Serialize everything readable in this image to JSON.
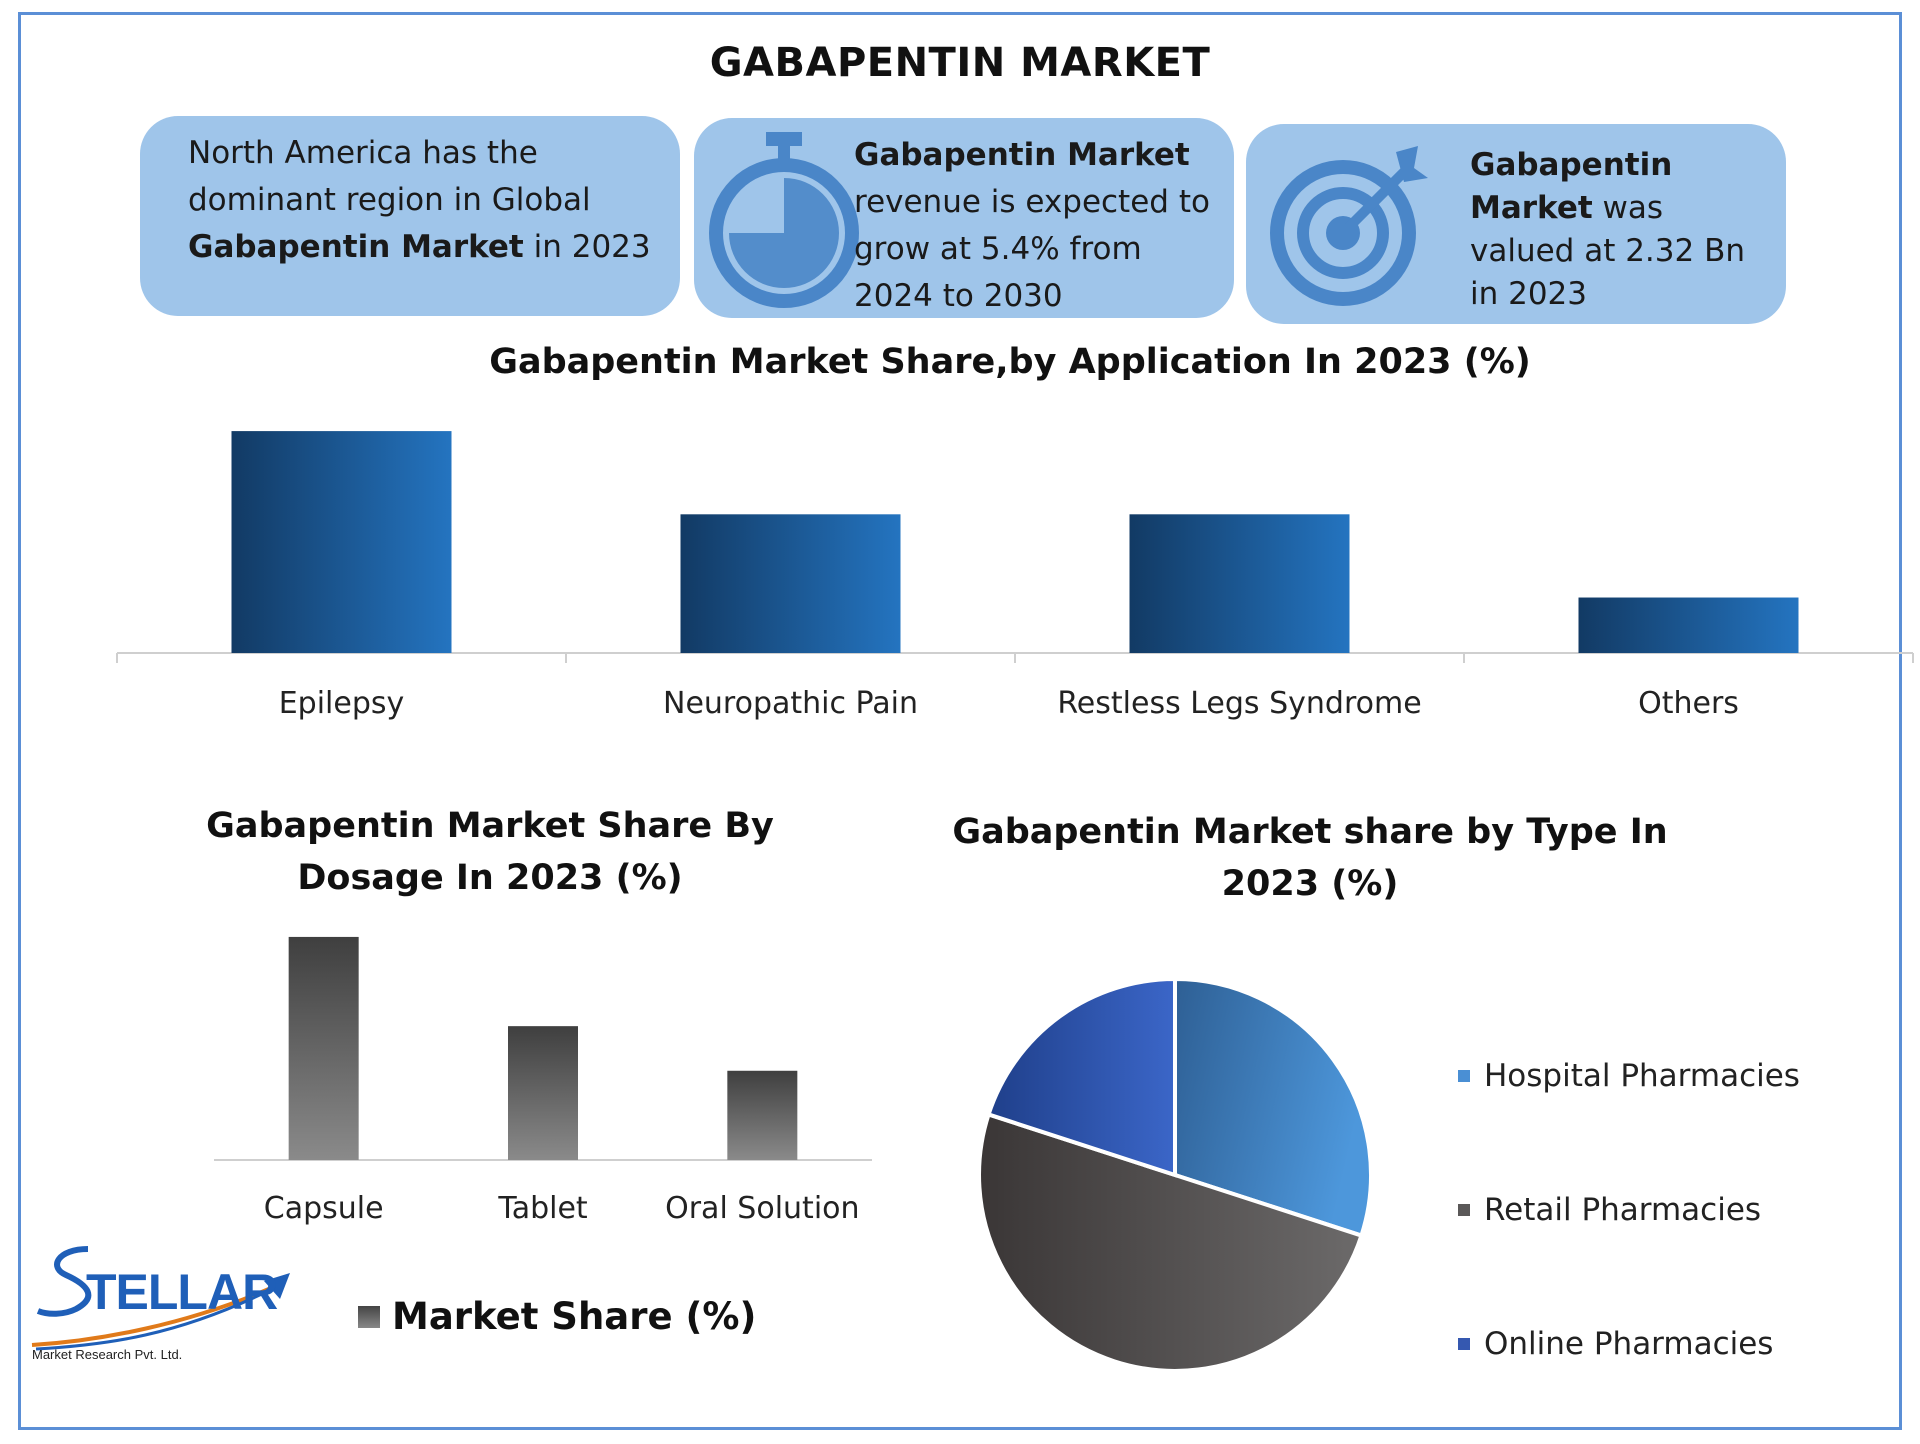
{
  "title": "GABAPENTIN MARKET",
  "cards": [
    {
      "lines": [
        [
          {
            "t": "North America has the",
            "b": false
          }
        ],
        [
          {
            "t": "dominant region in Global",
            "b": false
          }
        ],
        [
          {
            "t": "Gabapentin Market",
            "b": true
          },
          {
            "t": " in 2023",
            "b": false
          }
        ]
      ],
      "icon": "none"
    },
    {
      "lines": [
        [
          {
            "t": "Gabapentin Market",
            "b": true
          }
        ],
        [
          {
            "t": "revenue is expected to",
            "b": false
          }
        ],
        [
          {
            "t": "grow at 5.4% from",
            "b": false
          }
        ],
        [
          {
            "t": "2024 to 2030",
            "b": false
          }
        ]
      ],
      "icon": "stopwatch-icon"
    },
    {
      "lines": [
        [
          {
            "t": "Gabapentin",
            "b": true
          }
        ],
        [
          {
            "t": "Market",
            "b": true
          },
          {
            "t": " was",
            "b": false
          }
        ],
        [
          {
            "t": "valued at 2.32 Bn",
            "b": false
          }
        ],
        [
          {
            "t": "in 2023",
            "b": false
          }
        ]
      ],
      "icon": "target-icon"
    }
  ],
  "colors": {
    "card_bg": "#9fc5ea",
    "icon": "#4a86c8",
    "frame": "#5b8fd6",
    "bar_blue_start": "#123a64",
    "bar_blue_end": "#2474c0",
    "bar_gray_top": "#3f3f3f",
    "bar_gray_bottom": "#8a8a8a"
  },
  "chart_data": [
    {
      "type": "bar",
      "title": "Gabapentin Market Share,by Application In 2023 (%)",
      "categories": [
        "Epilepsy",
        "Neuropathic Pain",
        "Restless Legs Syndrome",
        "Others"
      ],
      "values": [
        40,
        25,
        25,
        10
      ],
      "ylim": [
        0,
        42
      ],
      "grid": false,
      "xlabel": "",
      "ylabel": ""
    },
    {
      "type": "bar",
      "title": "Gabapentin Market Share By Dosage In 2023 (%)",
      "categories": [
        "Capsule",
        "Tablet",
        "Oral Solution"
      ],
      "series": [
        {
          "name": "Market Share (%)",
          "values": [
            50,
            30,
            20
          ]
        }
      ],
      "ylim": [
        0,
        52
      ],
      "grid": false,
      "legend": "bottom",
      "xlabel": "",
      "ylabel": ""
    },
    {
      "type": "pie",
      "title": "Gabapentin Market share by Type In 2023 (%)",
      "categories": [
        "Hospital Pharmacies",
        "Retail Pharmacies",
        "Online Pharmacies"
      ],
      "values": [
        30,
        50,
        20
      ],
      "colors": [
        "#4a8fd4",
        "#5a5858",
        "#3558b0"
      ],
      "legend": "right"
    }
  ],
  "logo": {
    "name": "STELLAR",
    "tagline": "Market Research Pvt. Ltd."
  }
}
